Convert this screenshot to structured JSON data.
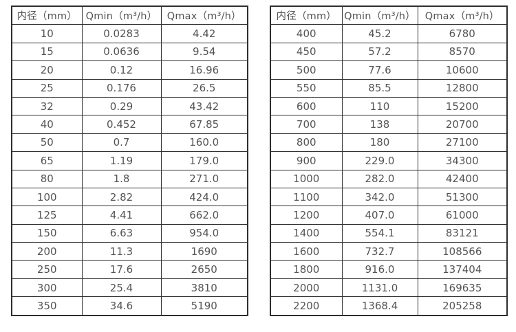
{
  "colors": {
    "background": "#ffffff",
    "table_border": "#2e2e2e",
    "text": "#545454"
  },
  "tables": [
    {
      "name": "flow-table-left",
      "headers": [
        "内径（mm）",
        "Qmin（m³/h）",
        "Qmax（m³/h）"
      ],
      "rows": [
        [
          "10",
          "0.0283",
          "4.42"
        ],
        [
          "15",
          "0.0636",
          "9.54"
        ],
        [
          "20",
          "0.12",
          "16.96"
        ],
        [
          "25",
          "0.176",
          "26.5"
        ],
        [
          "32",
          "0.29",
          "43.42"
        ],
        [
          "40",
          "0.452",
          "67.85"
        ],
        [
          "50",
          "0.7",
          "160.0"
        ],
        [
          "65",
          "1.19",
          "179.0"
        ],
        [
          "80",
          "1.8",
          "271.0"
        ],
        [
          "100",
          "2.82",
          "424.0"
        ],
        [
          "125",
          "4.41",
          "662.0"
        ],
        [
          "150",
          "6.63",
          "954.0"
        ],
        [
          "200",
          "11.3",
          "1690"
        ],
        [
          "250",
          "17.6",
          "2650"
        ],
        [
          "300",
          "25.4",
          "3810"
        ],
        [
          "350",
          "34.6",
          "5190"
        ]
      ]
    },
    {
      "name": "flow-table-right",
      "headers": [
        "内径（mm）",
        "Qmin（m³/h）",
        "Qmax（m³/h）"
      ],
      "rows": [
        [
          "400",
          "45.2",
          "6780"
        ],
        [
          "450",
          "57.2",
          "8570"
        ],
        [
          "500",
          "77.6",
          "10600"
        ],
        [
          "550",
          "85.5",
          "12800"
        ],
        [
          "600",
          "110",
          "15200"
        ],
        [
          "700",
          "138",
          "20700"
        ],
        [
          "800",
          "180",
          "27100"
        ],
        [
          "900",
          "229.0",
          "34300"
        ],
        [
          "1000",
          "282.0",
          "42400"
        ],
        [
          "1100",
          "342.0",
          "51300"
        ],
        [
          "1200",
          "407.0",
          "61000"
        ],
        [
          "1400",
          "554.1",
          "83121"
        ],
        [
          "1600",
          "732.7",
          "108566"
        ],
        [
          "1800",
          "916.0",
          "137404"
        ],
        [
          "2000",
          "1131.0",
          "169635"
        ],
        [
          "2200",
          "1368.4",
          "205258"
        ]
      ]
    }
  ],
  "chart_data": [
    {
      "type": "table",
      "title": "",
      "columns": [
        "内径（mm）",
        "Qmin（m³/h）",
        "Qmax（m³/h）"
      ],
      "rows": [
        [
          10,
          0.0283,
          4.42
        ],
        [
          15,
          0.0636,
          9.54
        ],
        [
          20,
          0.12,
          16.96
        ],
        [
          25,
          0.176,
          26.5
        ],
        [
          32,
          0.29,
          43.42
        ],
        [
          40,
          0.452,
          67.85
        ],
        [
          50,
          0.7,
          160.0
        ],
        [
          65,
          1.19,
          179.0
        ],
        [
          80,
          1.8,
          271.0
        ],
        [
          100,
          2.82,
          424.0
        ],
        [
          125,
          4.41,
          662.0
        ],
        [
          150,
          6.63,
          954.0
        ],
        [
          200,
          11.3,
          1690
        ],
        [
          250,
          17.6,
          2650
        ],
        [
          300,
          25.4,
          3810
        ],
        [
          350,
          34.6,
          5190
        ]
      ]
    },
    {
      "type": "table",
      "title": "",
      "columns": [
        "内径（mm）",
        "Qmin（m³/h）",
        "Qmax（m³/h）"
      ],
      "rows": [
        [
          400,
          45.2,
          6780
        ],
        [
          450,
          57.2,
          8570
        ],
        [
          500,
          77.6,
          10600
        ],
        [
          550,
          85.5,
          12800
        ],
        [
          600,
          110,
          15200
        ],
        [
          700,
          138,
          20700
        ],
        [
          800,
          180,
          27100
        ],
        [
          900,
          229.0,
          34300
        ],
        [
          1000,
          282.0,
          42400
        ],
        [
          1100,
          342.0,
          51300
        ],
        [
          1200,
          407.0,
          61000
        ],
        [
          1400,
          554.1,
          83121
        ],
        [
          1600,
          732.7,
          108566
        ],
        [
          1800,
          916.0,
          137404
        ],
        [
          2000,
          1131.0,
          169635
        ],
        [
          2200,
          1368.4,
          205258
        ]
      ]
    }
  ]
}
